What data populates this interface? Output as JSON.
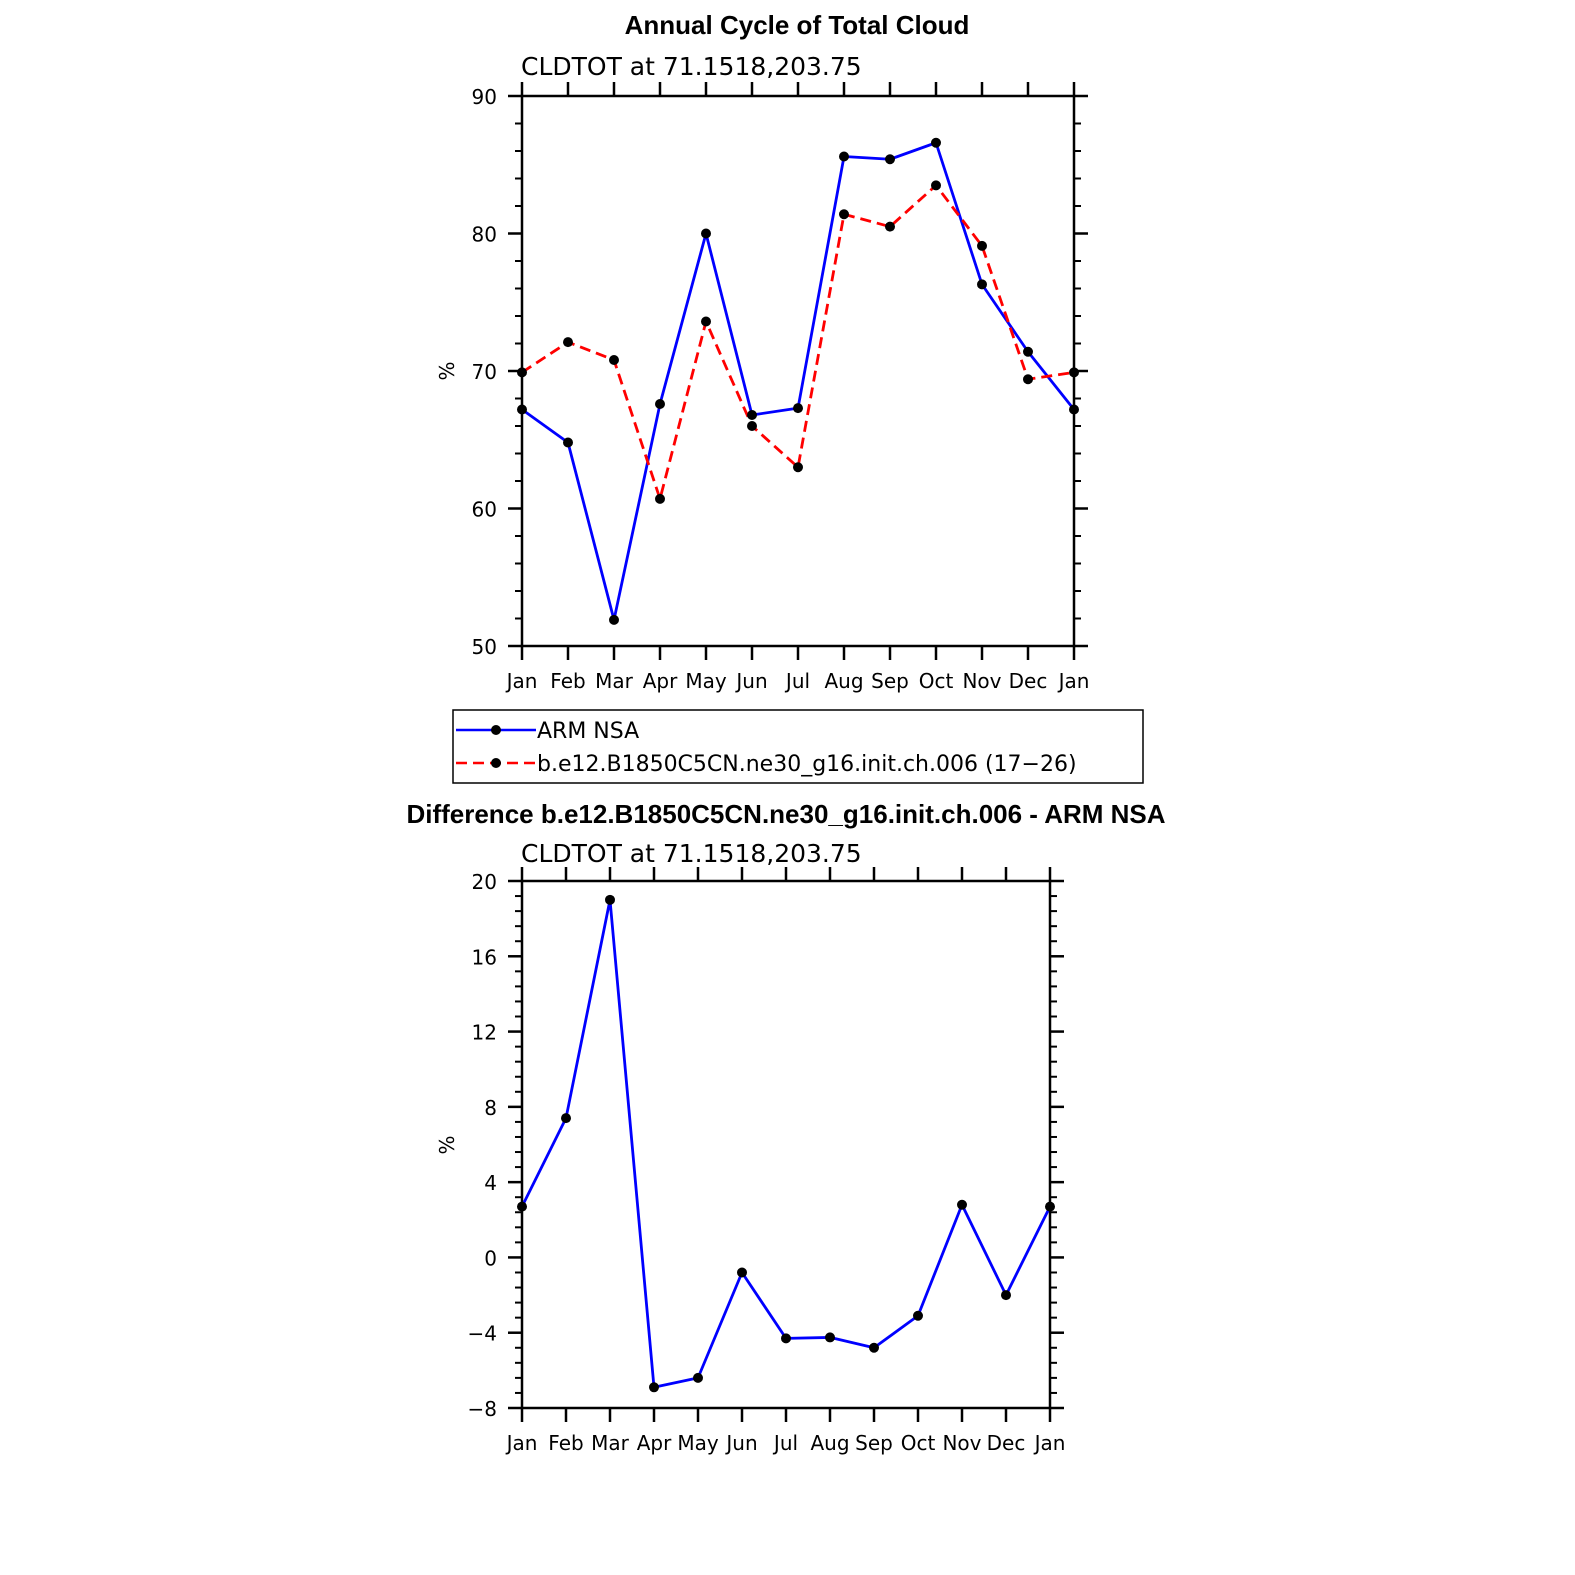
{
  "chart_data": [
    {
      "type": "line",
      "title": "Annual Cycle of Total Cloud",
      "subtitle": "CLDTOT at 71.1518,203.75",
      "ylabel": "%",
      "xlabel": "",
      "categories": [
        "Jan",
        "Feb",
        "Mar",
        "Apr",
        "May",
        "Jun",
        "Jul",
        "Aug",
        "Sep",
        "Oct",
        "Nov",
        "Dec",
        "Jan"
      ],
      "ylim": [
        50,
        90
      ],
      "yticks": [
        50,
        60,
        70,
        80,
        90
      ],
      "series": [
        {
          "name": "ARM NSA",
          "color": "#0000ff",
          "dash": "solid",
          "values": [
            67.2,
            64.8,
            51.9,
            67.6,
            80.0,
            66.8,
            67.3,
            85.6,
            85.4,
            86.6,
            76.3,
            71.4,
            67.2
          ]
        },
        {
          "name": "b.e12.B1850C5CN.ne30_g16.init.ch.006 (17−26)",
          "color": "#ff0000",
          "dash": "dashed",
          "values": [
            69.9,
            72.1,
            70.8,
            60.7,
            73.6,
            66.0,
            63.0,
            81.4,
            80.5,
            83.5,
            79.1,
            69.4,
            69.9
          ]
        }
      ],
      "legend_position": "bottom"
    },
    {
      "type": "line",
      "title": "Difference b.e12.B1850C5CN.ne30_g16.init.ch.006 - ARM NSA",
      "subtitle": "CLDTOT at 71.1518,203.75",
      "ylabel": "%",
      "xlabel": "",
      "categories": [
        "Jan",
        "Feb",
        "Mar",
        "Apr",
        "May",
        "Jun",
        "Jul",
        "Aug",
        "Sep",
        "Oct",
        "Nov",
        "Dec",
        "Jan"
      ],
      "ylim": [
        -8,
        20
      ],
      "yticks": [
        -8,
        -4,
        0,
        4,
        8,
        12,
        16,
        20
      ],
      "series": [
        {
          "name": "Difference",
          "color": "#0000ff",
          "dash": "solid",
          "values": [
            2.7,
            7.4,
            19.0,
            -6.9,
            -6.4,
            -0.8,
            -4.3,
            -4.25,
            -4.8,
            -3.1,
            2.8,
            -2.0,
            2.7
          ]
        }
      ]
    }
  ]
}
